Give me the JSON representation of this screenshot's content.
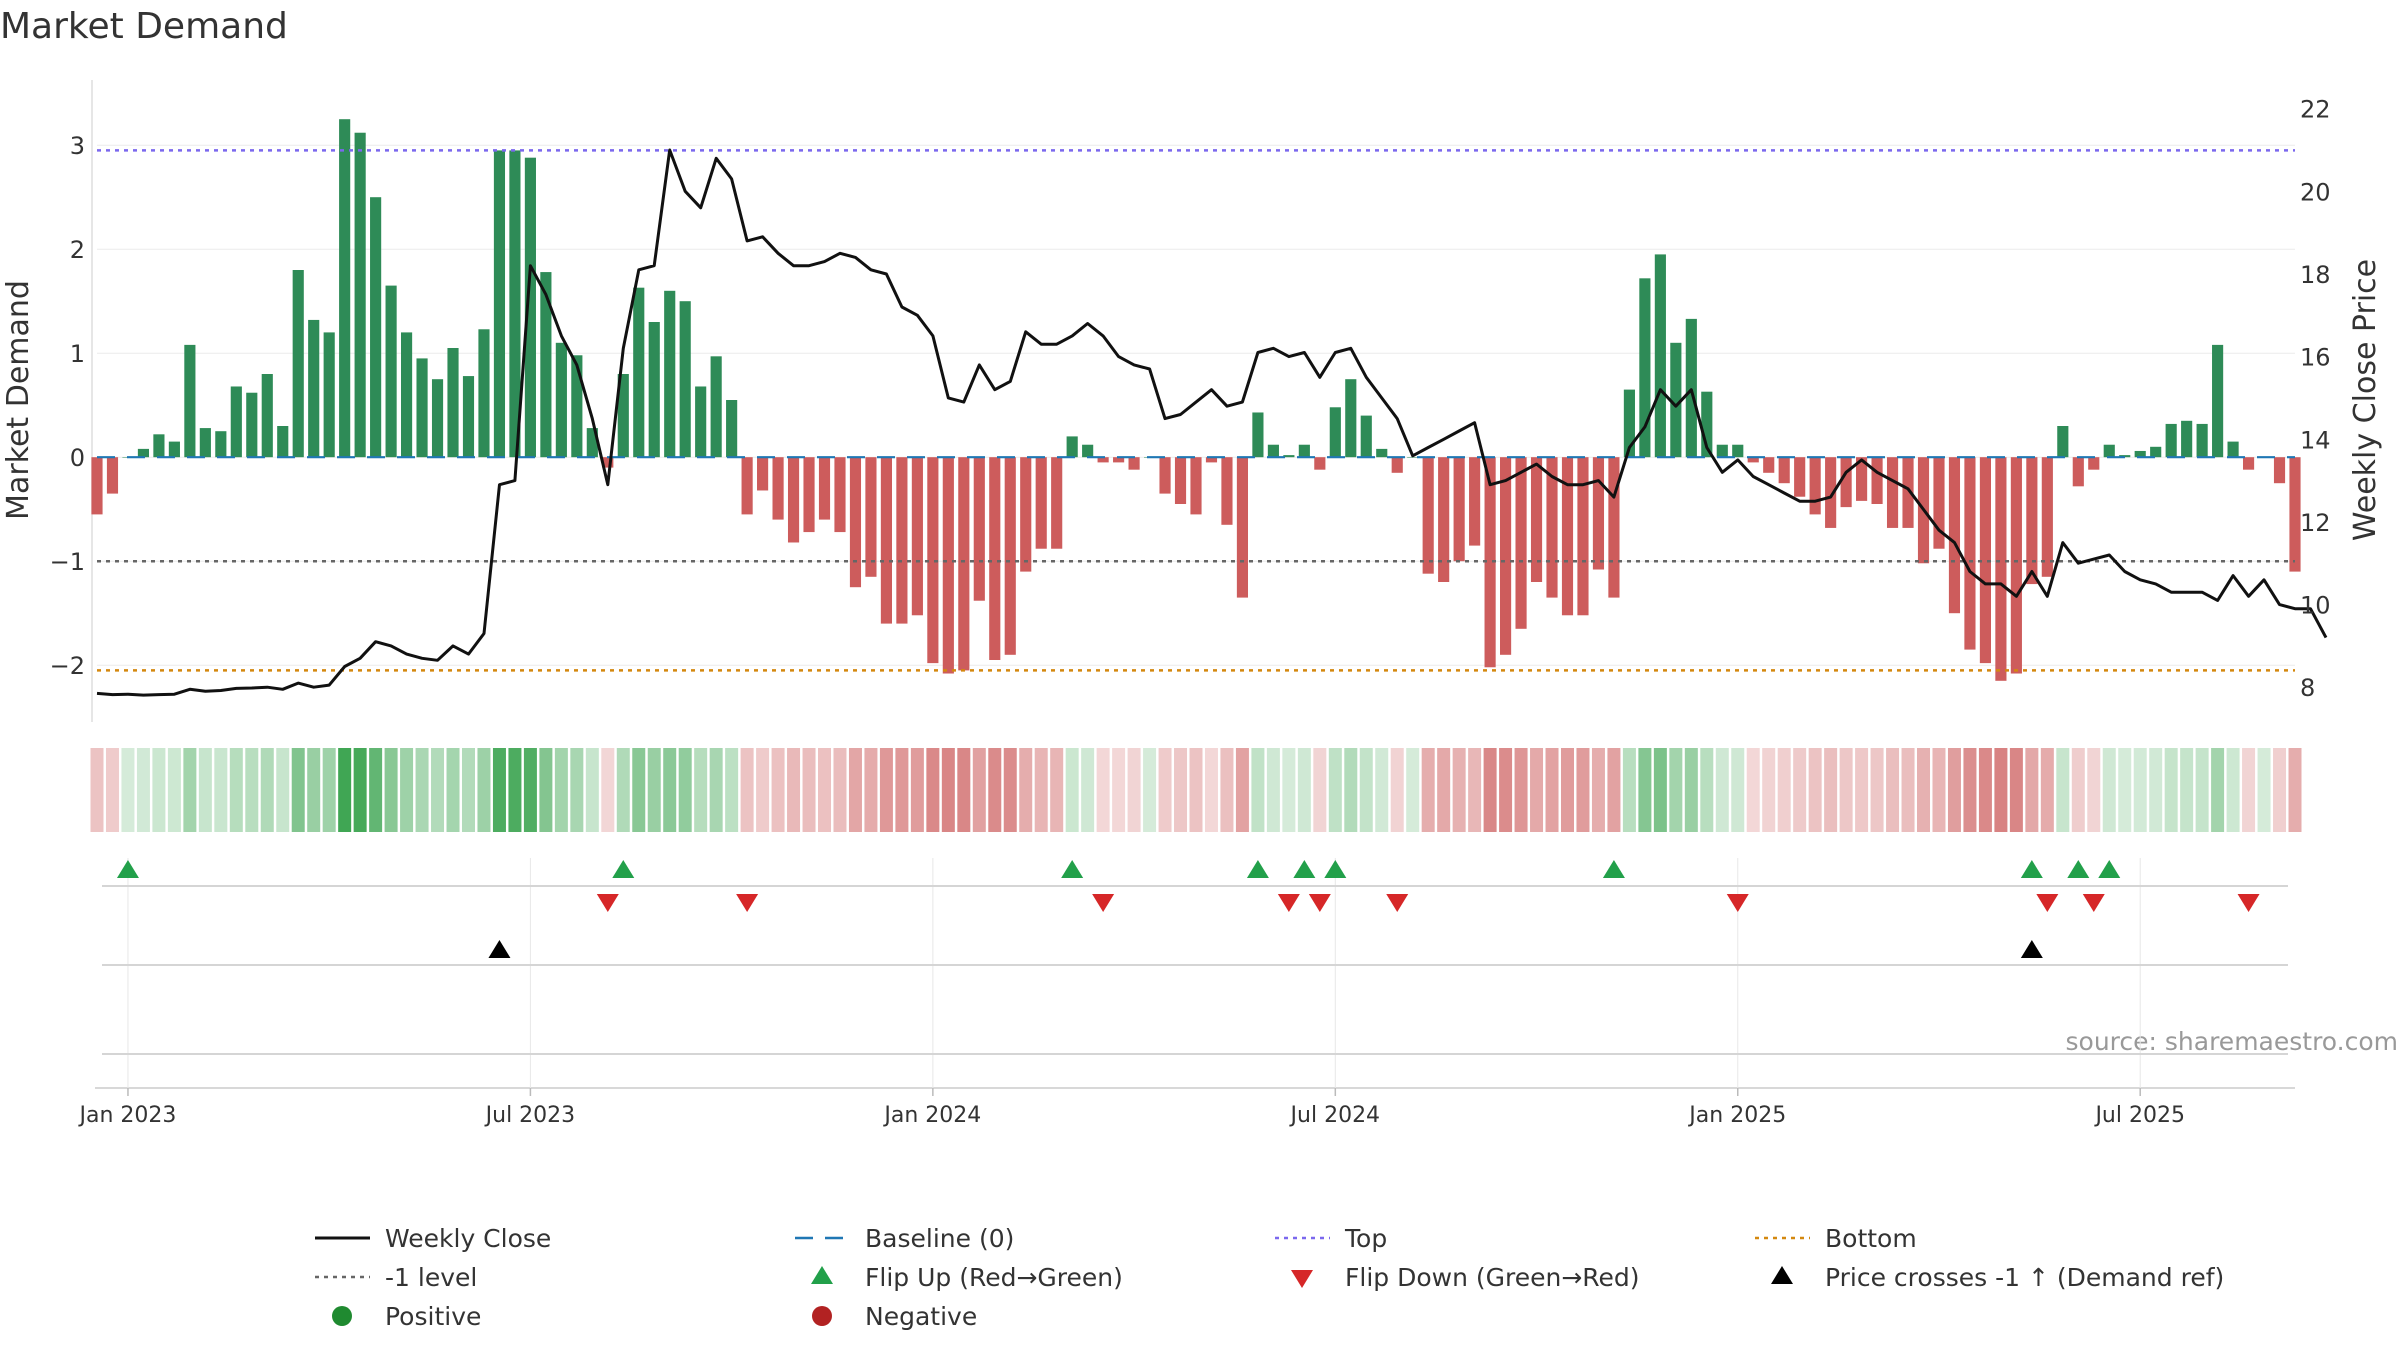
{
  "chart_data": {
    "type": "bar",
    "title": "Market Demand",
    "ylabel": "Market Demand",
    "y2label": "Weekly Close Price",
    "ylim": [
      -2.45,
      3.55
    ],
    "y2lim": [
      7.4,
      22.5
    ],
    "y_ticks": [
      {
        "v": 3,
        "label": "3"
      },
      {
        "v": 2,
        "label": "2"
      },
      {
        "v": 1,
        "label": "1"
      },
      {
        "v": 0,
        "label": "0"
      },
      {
        "v": -1,
        "label": "−1"
      },
      {
        "v": -2,
        "label": "−2"
      }
    ],
    "y2_ticks": [
      {
        "v": 22,
        "label": "22"
      },
      {
        "v": 20,
        "label": "20"
      },
      {
        "v": 18,
        "label": "18"
      },
      {
        "v": 16,
        "label": "16"
      },
      {
        "v": 14,
        "label": "14"
      },
      {
        "v": 12,
        "label": "12"
      },
      {
        "v": 10,
        "label": "10"
      },
      {
        "v": 8,
        "label": "8"
      }
    ],
    "x_ticks": [
      {
        "i": 2,
        "label": "Jan 2023"
      },
      {
        "i": 28,
        "label": "Jul 2023"
      },
      {
        "i": 54,
        "label": "Jan 2024"
      },
      {
        "i": 80,
        "label": "Jul 2024"
      },
      {
        "i": 106,
        "label": "Jan 2025"
      },
      {
        "i": 132,
        "label": "Jul 2025"
      }
    ],
    "levels": {
      "top": 2.95,
      "bottom": -2.05,
      "minus_one": -1,
      "baseline": 0
    },
    "demand": [
      -0.55,
      -0.35,
      0,
      0.08,
      0.22,
      0.15,
      1.08,
      0.28,
      0.25,
      0.68,
      0.62,
      0.8,
      0.3,
      1.8,
      1.32,
      1.2,
      3.25,
      3.12,
      2.5,
      1.65,
      1.2,
      0.95,
      0.75,
      1.05,
      0.78,
      1.23,
      2.95,
      2.95,
      2.88,
      1.78,
      1.1,
      0.98,
      0.28,
      -0.1,
      0.8,
      1.63,
      1.3,
      1.6,
      1.5,
      0.68,
      0.97,
      0.55,
      -0.55,
      -0.32,
      -0.6,
      -0.82,
      -0.72,
      -0.6,
      -0.72,
      -1.25,
      -1.15,
      -1.6,
      -1.6,
      -1.52,
      -1.98,
      -2.08,
      -2.05,
      -1.38,
      -1.95,
      -1.9,
      -1.1,
      -0.88,
      -0.88,
      0.2,
      0.12,
      -0.05,
      -0.05,
      -0.12,
      0,
      -0.35,
      -0.45,
      -0.55,
      -0.05,
      -0.65,
      -1.35,
      0.43,
      0.12,
      0.02,
      0.12,
      -0.12,
      0.48,
      0.75,
      0.4,
      0.08,
      -0.15,
      0,
      -1.12,
      -1.2,
      -1.0,
      -0.85,
      -2.02,
      -1.9,
      -1.65,
      -1.2,
      -1.35,
      -1.52,
      -1.52,
      -1.08,
      -1.35,
      0.65,
      1.72,
      1.95,
      1.1,
      1.33,
      0.63,
      0.12,
      0.12,
      -0.05,
      -0.15,
      -0.25,
      -0.38,
      -0.55,
      -0.68,
      -0.48,
      -0.42,
      -0.45,
      -0.68,
      -0.68,
      -1.02,
      -0.88,
      -1.5,
      -1.85,
      -1.98,
      -2.15,
      -2.08,
      -1.22,
      -1.15,
      0.3,
      -0.28,
      -0.12,
      0.12,
      0.02,
      0.06,
      0.1,
      0.32,
      0.35,
      0.32,
      1.08,
      0.15,
      -0.12,
      0,
      -0.25,
      -1.1
    ],
    "close": [
      7.85,
      7.82,
      7.83,
      7.81,
      7.82,
      7.83,
      7.95,
      7.9,
      7.92,
      7.97,
      7.98,
      8.0,
      7.95,
      8.1,
      8.0,
      8.05,
      8.5,
      8.7,
      9.1,
      9.0,
      8.8,
      8.7,
      8.65,
      9.0,
      8.8,
      9.3,
      12.9,
      13.0,
      18.2,
      17.5,
      16.5,
      15.8,
      14.5,
      12.9,
      16.2,
      18.1,
      18.2,
      21.0,
      20.0,
      19.6,
      20.8,
      20.3,
      18.8,
      18.9,
      18.5,
      18.2,
      18.2,
      18.3,
      18.5,
      18.4,
      18.1,
      18.0,
      17.2,
      17.0,
      16.5,
      15.0,
      14.9,
      15.8,
      15.2,
      15.4,
      16.6,
      16.3,
      16.3,
      16.5,
      16.8,
      16.5,
      16.0,
      15.8,
      15.7,
      14.5,
      14.6,
      14.9,
      15.2,
      14.8,
      14.9,
      16.1,
      16.2,
      16.0,
      16.1,
      15.5,
      16.1,
      16.2,
      15.5,
      15.0,
      14.5,
      13.6,
      13.8,
      14.0,
      14.2,
      14.4,
      12.9,
      13.0,
      13.2,
      13.4,
      13.1,
      12.9,
      12.9,
      13.0,
      12.6,
      13.8,
      14.3,
      15.2,
      14.8,
      15.2,
      13.8,
      13.2,
      13.5,
      13.1,
      12.9,
      12.7,
      12.5,
      12.5,
      12.6,
      13.2,
      13.5,
      13.2,
      13.0,
      12.8,
      12.3,
      11.8,
      11.5,
      10.8,
      10.5,
      10.5,
      10.2,
      10.8,
      10.2,
      11.5,
      11.0,
      11.1,
      11.2,
      10.8,
      10.6,
      10.5,
      10.3,
      10.3,
      10.3,
      10.1,
      10.7,
      10.2,
      10.6,
      10.0,
      9.9,
      9.9,
      9.2
    ],
    "flip_up": [
      2,
      34,
      63,
      75,
      78,
      80,
      98,
      125,
      128,
      130
    ],
    "flip_down": [
      33,
      42,
      65,
      77,
      79,
      84,
      106,
      126,
      129,
      139
    ],
    "price_cross": [
      26,
      125
    ],
    "source": "source: sharemaestro.com",
    "legend": [
      {
        "key": "weekly_close",
        "label": "Weekly Close"
      },
      {
        "key": "baseline",
        "label": "Baseline (0)"
      },
      {
        "key": "top",
        "label": "Top"
      },
      {
        "key": "bottom",
        "label": "Bottom"
      },
      {
        "key": "minus_one",
        "label": "-1 level"
      },
      {
        "key": "flip_up",
        "label": "Flip Up (Red→Green)"
      },
      {
        "key": "flip_down",
        "label": "Flip Down (Green→Red)"
      },
      {
        "key": "price_cross",
        "label": "Price crosses -1 ↑ (Demand ref)"
      },
      {
        "key": "positive",
        "label": "Positive"
      },
      {
        "key": "negative",
        "label": "Negative"
      }
    ],
    "colors": {
      "pos": "#2e8b57",
      "neg": "#cd5c5c",
      "close": "#111111",
      "baseline": "#1f77b4",
      "top": "#7b68ee",
      "bottom": "#d4880f",
      "minus_one": "#666666",
      "flip_up": "#22a04a",
      "flip_down": "#d62728",
      "cross": "#000000",
      "positive_dot": "#1f8a30",
      "negative_dot": "#b22222"
    }
  }
}
